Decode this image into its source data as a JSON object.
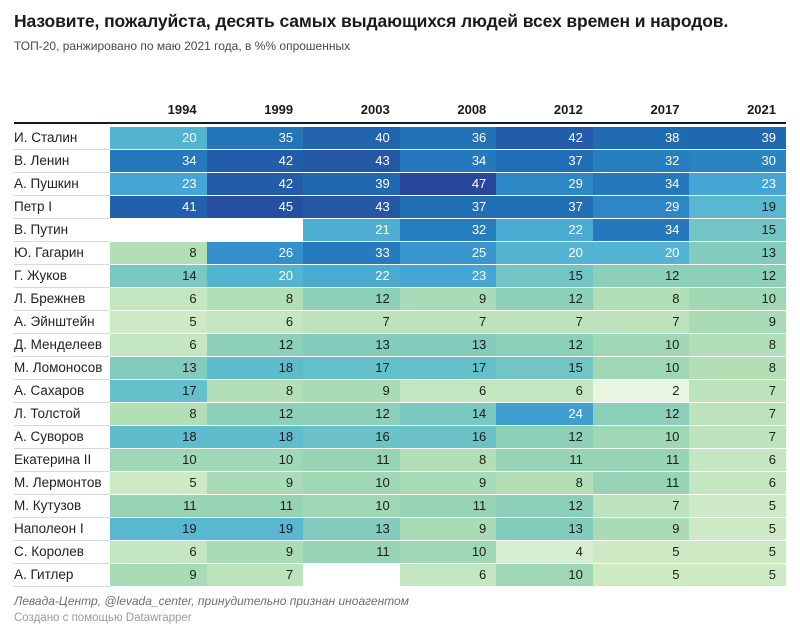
{
  "header": {
    "title": "Назовите, пожалуйста, десять самых выдающихся людей всех времен и народов.",
    "subtitle": "ТОП-20, ранжировано по маю 2021 года, в %% опрошенных"
  },
  "chart_data": {
    "type": "heatmap",
    "title": "Назовите, пожалуйста, десять самых выдающихся людей всех времен и народов.",
    "subtitle": "ТОП-20, ранжировано по маю 2021 года, в %% опрошенных",
    "unit": "% опрошенных",
    "columns": [
      "1994",
      "1999",
      "2003",
      "2008",
      "2012",
      "2017",
      "2021"
    ],
    "rows": [
      {
        "name": "И. Сталин",
        "values": [
          20,
          35,
          40,
          36,
          42,
          38,
          39
        ]
      },
      {
        "name": "В. Ленин",
        "values": [
          34,
          42,
          43,
          34,
          37,
          32,
          30
        ]
      },
      {
        "name": "А. Пушкин",
        "values": [
          23,
          42,
          39,
          47,
          29,
          34,
          23
        ]
      },
      {
        "name": "Петр I",
        "values": [
          41,
          45,
          43,
          37,
          37,
          29,
          19
        ]
      },
      {
        "name": "В. Путин",
        "values": [
          null,
          null,
          21,
          32,
          22,
          34,
          15
        ]
      },
      {
        "name": "Ю. Гагарин",
        "values": [
          8,
          26,
          33,
          25,
          20,
          20,
          13
        ]
      },
      {
        "name": "Г. Жуков",
        "values": [
          14,
          20,
          22,
          23,
          15,
          12,
          12
        ]
      },
      {
        "name": "Л. Брежнев",
        "values": [
          6,
          8,
          12,
          9,
          12,
          8,
          10
        ]
      },
      {
        "name": "А. Эйнштейн",
        "values": [
          5,
          6,
          7,
          7,
          7,
          7,
          9
        ]
      },
      {
        "name": "Д. Менделеев",
        "values": [
          6,
          12,
          13,
          13,
          12,
          10,
          8
        ]
      },
      {
        "name": "М. Ломоносов",
        "values": [
          13,
          18,
          17,
          17,
          15,
          10,
          8
        ]
      },
      {
        "name": "А. Сахаров",
        "values": [
          17,
          8,
          9,
          6,
          6,
          2,
          7
        ]
      },
      {
        "name": "Л. Толстой",
        "values": [
          8,
          12,
          12,
          14,
          24,
          12,
          7
        ]
      },
      {
        "name": "А. Суворов",
        "values": [
          18,
          18,
          16,
          16,
          12,
          10,
          7
        ]
      },
      {
        "name": "Екатерина II",
        "values": [
          10,
          10,
          11,
          8,
          11,
          11,
          6
        ]
      },
      {
        "name": "М. Лермонтов",
        "values": [
          5,
          9,
          10,
          9,
          8,
          11,
          6
        ]
      },
      {
        "name": "М. Кутузов",
        "values": [
          11,
          11,
          10,
          11,
          12,
          7,
          5
        ]
      },
      {
        "name": "Наполеон I",
        "values": [
          19,
          19,
          13,
          9,
          13,
          9,
          5
        ]
      },
      {
        "name": "С. Королев",
        "values": [
          6,
          9,
          11,
          10,
          4,
          5,
          5
        ]
      },
      {
        "name": "А. Гитлер",
        "values": [
          9,
          7,
          null,
          6,
          10,
          5,
          5
        ]
      }
    ],
    "color_scale": {
      "stops": [
        [
          2,
          "#e9f6e2"
        ],
        [
          5,
          "#cdeac5"
        ],
        [
          8,
          "#b3dfb7"
        ],
        [
          11,
          "#97d4b6"
        ],
        [
          14,
          "#79c8c1"
        ],
        [
          17,
          "#64c0ca"
        ],
        [
          20,
          "#52b4d1"
        ],
        [
          23,
          "#45a6d3"
        ],
        [
          26,
          "#3390cb"
        ],
        [
          30,
          "#2a84c1"
        ],
        [
          34,
          "#2478bb"
        ],
        [
          38,
          "#1f6cb2"
        ],
        [
          42,
          "#235ca8"
        ],
        [
          47,
          "#27479b"
        ]
      ],
      "white_text_min": 20
    },
    "layout": {
      "legend": "none",
      "grid": "row-separators",
      "value_align": "right"
    }
  },
  "footer": {
    "source": "Левада-Центр, @levada_center, принудительно признан иноагентом",
    "attribution": "Создано с помощью Datawrapper"
  },
  "theme": {
    "background": "#ffffff",
    "title_color": "#1a1a1a",
    "subtitle_color": "#494949",
    "header_rule_color": "#1a1a1a",
    "label_color": "#222222",
    "value_dark_text": "#1d1d1d",
    "value_light_text": "#ffffff",
    "row_separator": "#d9d9d9",
    "source_color": "#6e6e6e",
    "attribution_color": "#9b9b9b"
  }
}
